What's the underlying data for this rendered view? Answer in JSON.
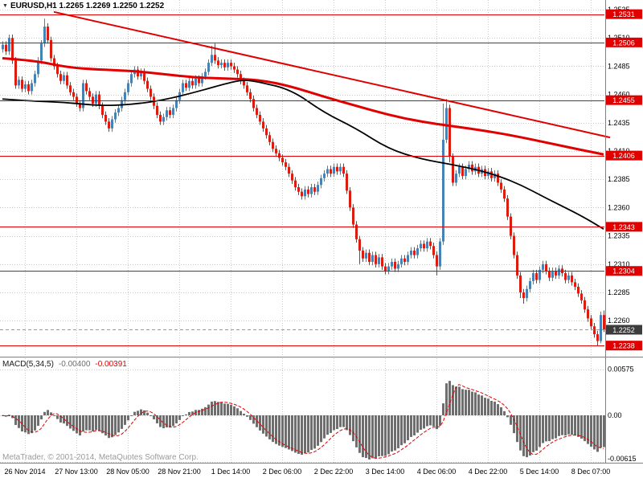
{
  "chart": {
    "marker": "▼",
    "symbol": "EURUSD",
    "period": "H1",
    "symbol_text": "EURUSD,H1 1.2265 1.2269 1.2250 1.2252",
    "ohlc": {
      "open": "1.2265",
      "high": "1.2269",
      "low": "1.2250",
      "close": "1.2252"
    }
  },
  "footer": {
    "copyright": "MetaTrader, © 2001-2014, MetaQuotes Software Corp."
  },
  "colors": {
    "background": "#ffffff",
    "grid": "#c8c8c8",
    "bull": "#4682b4",
    "bear": "#dd1c10",
    "line_red": "#e00000",
    "ma_black": "#000000",
    "histogram": "#6e6e6e",
    "bid_box": "#3c3c3c",
    "axis_text": "#000000",
    "bid_line": "#9a9a9a",
    "copyright": "#9a9a9a",
    "separator": "#808080"
  },
  "chart_data": {
    "type": "candlestick",
    "title": "EURUSD,H1",
    "price_unit": 0.0001,
    "y_axis": {
      "ticks": [
        "1.2535",
        "1.2510",
        "1.2485",
        "1.2460",
        "1.2435",
        "1.2410",
        "1.2385",
        "1.2360",
        "1.2335",
        "1.2310",
        "1.2285",
        "1.2260"
      ],
      "min": 1.226,
      "max": 1.2535,
      "step": 0.0025
    },
    "x_axis": {
      "labels": [
        {
          "i": 7,
          "label": "26 Nov 2014"
        },
        {
          "i": 23,
          "label": "27 Nov 13:00"
        },
        {
          "i": 39,
          "label": "28 Nov 05:00"
        },
        {
          "i": 55,
          "label": "28 Nov 21:00"
        },
        {
          "i": 71,
          "label": "1 Dec 14:00"
        },
        {
          "i": 87,
          "label": "2 Dec 06:00"
        },
        {
          "i": 103,
          "label": "2 Dec 22:00"
        },
        {
          "i": 119,
          "label": "3 Dec 14:00"
        },
        {
          "i": 135,
          "label": "4 Dec 06:00"
        },
        {
          "i": 151,
          "label": "4 Dec 22:00"
        },
        {
          "i": 167,
          "label": "5 Dec 14:00"
        },
        {
          "i": 183,
          "label": "8 Dec 07:00"
        }
      ]
    },
    "levels": [
      {
        "price": 1.2531,
        "label": "1.2531"
      },
      {
        "price": 1.2506,
        "label": "1.2506"
      },
      {
        "price": 1.2455,
        "label": "1.2455"
      },
      {
        "price": 1.2406,
        "label": "1.2406"
      },
      {
        "price": 1.2343,
        "label": "1.2343"
      },
      {
        "price": 1.2304,
        "label": "1.2304"
      },
      {
        "price": 1.2238,
        "label": "1.2238"
      }
    ],
    "bid": {
      "price": 1.2252,
      "label": "1.2252"
    },
    "trendline": {
      "i1": 16,
      "p1": 1.2533,
      "i2": 189,
      "p2": 1.2422
    },
    "ma_black": {
      "points": [
        [
          0,
          1.2456
        ],
        [
          10,
          1.2454
        ],
        [
          20,
          1.2453
        ],
        [
          30,
          1.245
        ],
        [
          40,
          1.2451
        ],
        [
          50,
          1.2455
        ],
        [
          60,
          1.2462
        ],
        [
          70,
          1.247
        ],
        [
          75,
          1.2473
        ],
        [
          80,
          1.2471
        ],
        [
          90,
          1.2464
        ],
        [
          100,
          1.2444
        ],
        [
          110,
          1.243
        ],
        [
          120,
          1.2412
        ],
        [
          130,
          1.2403
        ],
        [
          140,
          1.2398
        ],
        [
          150,
          1.2392
        ],
        [
          160,
          1.2382
        ],
        [
          170,
          1.2367
        ],
        [
          180,
          1.2353
        ],
        [
          187,
          1.2341
        ]
      ]
    },
    "ma_red": {
      "points": [
        [
          0,
          1.2492
        ],
        [
          10,
          1.249
        ],
        [
          20,
          1.2484
        ],
        [
          30,
          1.2482
        ],
        [
          40,
          1.2481
        ],
        [
          50,
          1.2478
        ],
        [
          60,
          1.2475
        ],
        [
          70,
          1.2474
        ],
        [
          80,
          1.2473
        ],
        [
          90,
          1.2467
        ],
        [
          100,
          1.2458
        ],
        [
          110,
          1.245
        ],
        [
          120,
          1.2442
        ],
        [
          130,
          1.2436
        ],
        [
          140,
          1.2432
        ],
        [
          150,
          1.2428
        ],
        [
          160,
          1.2423
        ],
        [
          170,
          1.2417
        ],
        [
          180,
          1.2411
        ],
        [
          187,
          1.2407
        ]
      ]
    },
    "macd": {
      "label": "MACD(5,34,5)",
      "value_main": "-0.00400",
      "value_signal": "-0.00391",
      "fast": 5,
      "slow": 34,
      "signal": 5,
      "ticks": [
        {
          "v": 0.00575,
          "label": "0.00575"
        },
        {
          "v": 0,
          "label": "0.00"
        },
        {
          "v": -0.00615,
          "label": "-0.00615"
        }
      ]
    },
    "candles": [
      [
        12500,
        12507,
        12497,
        12504
      ],
      [
        12504,
        12507,
        12495,
        12498
      ],
      [
        12498,
        12513,
        12495,
        12510
      ],
      [
        12510,
        12513,
        12487,
        12490
      ],
      [
        12490,
        12493,
        12465,
        12468
      ],
      [
        12468,
        12476,
        12465,
        12473
      ],
      [
        12473,
        12476,
        12462,
        12465
      ],
      [
        12465,
        12472,
        12462,
        12469
      ],
      [
        12469,
        12472,
        12460,
        12463
      ],
      [
        12463,
        12473,
        12460,
        12470
      ],
      [
        12470,
        12481,
        12467,
        12478
      ],
      [
        12478,
        12493,
        12475,
        12490
      ],
      [
        12490,
        12508,
        12487,
        12505
      ],
      [
        12505,
        12527,
        12502,
        12520
      ],
      [
        12520,
        12523,
        12505,
        12508
      ],
      [
        12508,
        12511,
        12489,
        12492
      ],
      [
        12492,
        12495,
        12482,
        12485
      ],
      [
        12485,
        12488,
        12475,
        12478
      ],
      [
        12478,
        12481,
        12469,
        12472
      ],
      [
        12472,
        12480,
        12469,
        12477
      ],
      [
        12477,
        12480,
        12465,
        12468
      ],
      [
        12468,
        12471,
        12459,
        12462
      ],
      [
        12462,
        12465,
        12455,
        12458
      ],
      [
        12458,
        12461,
        12449,
        12452
      ],
      [
        12452,
        12455,
        12445,
        12448
      ],
      [
        12448,
        12473,
        12445,
        12470
      ],
      [
        12470,
        12473,
        12460,
        12463
      ],
      [
        12463,
        12466,
        12455,
        12458
      ],
      [
        12458,
        12461,
        12449,
        12452
      ],
      [
        12452,
        12463,
        12449,
        12460
      ],
      [
        12460,
        12463,
        12447,
        12450
      ],
      [
        12450,
        12453,
        12439,
        12442
      ],
      [
        12442,
        12445,
        12433,
        12436
      ],
      [
        12436,
        12439,
        12427,
        12430
      ],
      [
        12430,
        12441,
        12427,
        12438
      ],
      [
        12438,
        12447,
        12435,
        12444
      ],
      [
        12444,
        12451,
        12441,
        12448
      ],
      [
        12448,
        12458,
        12445,
        12455
      ],
      [
        12455,
        12465,
        12452,
        12462
      ],
      [
        12462,
        12473,
        12459,
        12470
      ],
      [
        12470,
        12481,
        12467,
        12478
      ],
      [
        12478,
        12485,
        12475,
        12482
      ],
      [
        12482,
        12485,
        12473,
        12476
      ],
      [
        12476,
        12483,
        12473,
        12480
      ],
      [
        12480,
        12483,
        12469,
        12472
      ],
      [
        12472,
        12475,
        12462,
        12465
      ],
      [
        12465,
        12468,
        12455,
        12458
      ],
      [
        12458,
        12461,
        12447,
        12450
      ],
      [
        12450,
        12453,
        12439,
        12442
      ],
      [
        12442,
        12445,
        12433,
        12436
      ],
      [
        12436,
        12443,
        12433,
        12440
      ],
      [
        12440,
        12449,
        12437,
        12446
      ],
      [
        12446,
        12449,
        12439,
        12442
      ],
      [
        12442,
        12451,
        12439,
        12448
      ],
      [
        12448,
        12458,
        12445,
        12455
      ],
      [
        12455,
        12465,
        12452,
        12462
      ],
      [
        12462,
        12473,
        12459,
        12470
      ],
      [
        12470,
        12473,
        12463,
        12466
      ],
      [
        12466,
        12475,
        12463,
        12472
      ],
      [
        12472,
        12475,
        12465,
        12468
      ],
      [
        12468,
        12477,
        12465,
        12474
      ],
      [
        12474,
        12477,
        12467,
        12470
      ],
      [
        12470,
        12479,
        12467,
        12476
      ],
      [
        12476,
        12483,
        12473,
        12480
      ],
      [
        12480,
        12491,
        12477,
        12488
      ],
      [
        12488,
        12503,
        12485,
        12495
      ],
      [
        12495,
        12505,
        12487,
        12490
      ],
      [
        12490,
        12493,
        12483,
        12486
      ],
      [
        12486,
        12491,
        12483,
        12488
      ],
      [
        12488,
        12491,
        12481,
        12484
      ],
      [
        12484,
        12491,
        12481,
        12488
      ],
      [
        12488,
        12491,
        12482,
        12485
      ],
      [
        12485,
        12488,
        12479,
        12482
      ],
      [
        12482,
        12485,
        12475,
        12478
      ],
      [
        12478,
        12481,
        12469,
        12472
      ],
      [
        12472,
        12475,
        12465,
        12468
      ],
      [
        12468,
        12471,
        12459,
        12462
      ],
      [
        12462,
        12465,
        12453,
        12456
      ],
      [
        12456,
        12459,
        12445,
        12448
      ],
      [
        12448,
        12451,
        12439,
        12442
      ],
      [
        12442,
        12445,
        12433,
        12436
      ],
      [
        12436,
        12439,
        12427,
        12430
      ],
      [
        12430,
        12433,
        12421,
        12424
      ],
      [
        12424,
        12427,
        12415,
        12418
      ],
      [
        12418,
        12421,
        12409,
        12412
      ],
      [
        12412,
        12415,
        12405,
        12408
      ],
      [
        12408,
        12411,
        12401,
        12404
      ],
      [
        12404,
        12407,
        12397,
        12400
      ],
      [
        12400,
        12403,
        12393,
        12396
      ],
      [
        12396,
        12399,
        12387,
        12390
      ],
      [
        12390,
        12393,
        12381,
        12384
      ],
      [
        12384,
        12387,
        12375,
        12378
      ],
      [
        12378,
        12381,
        12371,
        12374
      ],
      [
        12374,
        12377,
        12367,
        12370
      ],
      [
        12370,
        12379,
        12367,
        12376
      ],
      [
        12376,
        12379,
        12369,
        12372
      ],
      [
        12372,
        12381,
        12369,
        12378
      ],
      [
        12378,
        12381,
        12371,
        12374
      ],
      [
        12374,
        12383,
        12371,
        12380
      ],
      [
        12380,
        12389,
        12377,
        12386
      ],
      [
        12386,
        12393,
        12383,
        12390
      ],
      [
        12390,
        12397,
        12387,
        12394
      ],
      [
        12394,
        12397,
        12387,
        12390
      ],
      [
        12390,
        12399,
        12387,
        12396
      ],
      [
        12396,
        12399,
        12389,
        12392
      ],
      [
        12392,
        12399,
        12389,
        12396
      ],
      [
        12396,
        12399,
        12387,
        12390
      ],
      [
        12390,
        12393,
        12372,
        12375
      ],
      [
        12375,
        12378,
        12357,
        12360
      ],
      [
        12360,
        12363,
        12342,
        12345
      ],
      [
        12345,
        12348,
        12329,
        12332
      ],
      [
        12332,
        12335,
        12310,
        12322
      ],
      [
        12322,
        12325,
        12312,
        12315
      ],
      [
        12315,
        12323,
        12312,
        12320
      ],
      [
        12320,
        12323,
        12309,
        12312
      ],
      [
        12312,
        12321,
        12309,
        12318
      ],
      [
        12318,
        12321,
        12307,
        12310
      ],
      [
        12310,
        12319,
        12307,
        12316
      ],
      [
        12316,
        12319,
        12305,
        12308
      ],
      [
        12308,
        12311,
        12301,
        12304
      ],
      [
        12304,
        12311,
        12301,
        12308
      ],
      [
        12308,
        12315,
        12305,
        12312
      ],
      [
        12312,
        12315,
        12303,
        12306
      ],
      [
        12306,
        12313,
        12303,
        12310
      ],
      [
        12310,
        12318,
        12307,
        12315
      ],
      [
        12315,
        12318,
        12309,
        12312
      ],
      [
        12312,
        12321,
        12309,
        12318
      ],
      [
        12318,
        12325,
        12315,
        12322
      ],
      [
        12322,
        12325,
        12315,
        12318
      ],
      [
        12318,
        12327,
        12315,
        12324
      ],
      [
        12324,
        12331,
        12321,
        12328
      ],
      [
        12328,
        12331,
        12321,
        12324
      ],
      [
        12324,
        12333,
        12321,
        12330
      ],
      [
        12330,
        12333,
        12323,
        12326
      ],
      [
        12326,
        12329,
        12315,
        12318
      ],
      [
        12318,
        12321,
        12300,
        12308
      ],
      [
        12308,
        12333,
        12305,
        12330
      ],
      [
        12330,
        12452,
        12327,
        12420
      ],
      [
        12420,
        12456,
        12417,
        12448
      ],
      [
        12448,
        12451,
        12400,
        12405
      ],
      [
        12405,
        12408,
        12379,
        12382
      ],
      [
        12382,
        12393,
        12379,
        12390
      ],
      [
        12390,
        12399,
        12387,
        12396
      ],
      [
        12396,
        12399,
        12385,
        12388
      ],
      [
        12388,
        12397,
        12385,
        12394
      ],
      [
        12394,
        12401,
        12391,
        12398
      ],
      [
        12398,
        12401,
        12389,
        12392
      ],
      [
        12392,
        12399,
        12389,
        12396
      ],
      [
        12396,
        12399,
        12387,
        12390
      ],
      [
        12390,
        12397,
        12387,
        12394
      ],
      [
        12394,
        12397,
        12385,
        12388
      ],
      [
        12388,
        12395,
        12385,
        12392
      ],
      [
        12392,
        12395,
        12383,
        12386
      ],
      [
        12386,
        12393,
        12383,
        12390
      ],
      [
        12390,
        12393,
        12379,
        12382
      ],
      [
        12382,
        12385,
        12373,
        12376
      ],
      [
        12376,
        12379,
        12365,
        12368
      ],
      [
        12368,
        12371,
        12349,
        12352
      ],
      [
        12352,
        12355,
        12332,
        12335
      ],
      [
        12335,
        12338,
        12315,
        12318
      ],
      [
        12318,
        12321,
        12297,
        12300
      ],
      [
        12300,
        12303,
        12280,
        12285
      ],
      [
        12285,
        12288,
        12275,
        12280
      ],
      [
        12280,
        12291,
        12277,
        12288
      ],
      [
        12288,
        12298,
        12285,
        12295
      ],
      [
        12295,
        12305,
        12292,
        12302
      ],
      [
        12302,
        12305,
        12293,
        12296
      ],
      [
        12296,
        12308,
        12293,
        12305
      ],
      [
        12305,
        12313,
        12302,
        12310
      ],
      [
        12310,
        12313,
        12301,
        12304
      ],
      [
        12304,
        12307,
        12295,
        12298
      ],
      [
        12298,
        12307,
        12295,
        12304
      ],
      [
        12304,
        12307,
        12297,
        12300
      ],
      [
        12300,
        12309,
        12297,
        12306
      ],
      [
        12306,
        12309,
        12299,
        12302
      ],
      [
        12302,
        12305,
        12293,
        12296
      ],
      [
        12296,
        12303,
        12293,
        12300
      ],
      [
        12300,
        12303,
        12291,
        12294
      ],
      [
        12294,
        12297,
        12287,
        12290
      ],
      [
        12290,
        12293,
        12281,
        12284
      ],
      [
        12284,
        12287,
        12275,
        12278
      ],
      [
        12278,
        12281,
        12267,
        12270
      ],
      [
        12270,
        12273,
        12259,
        12262
      ],
      [
        12262,
        12265,
        12252,
        12255
      ],
      [
        12255,
        12258,
        12245,
        12248
      ],
      [
        12248,
        12251,
        12238,
        12242
      ],
      [
        12242,
        12268,
        12240,
        12265
      ],
      [
        12265,
        12269,
        12250,
        12252
      ]
    ]
  }
}
